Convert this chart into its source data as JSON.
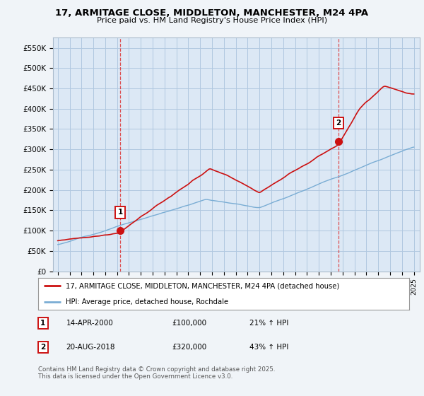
{
  "title1": "17, ARMITAGE CLOSE, MIDDLETON, MANCHESTER, M24 4PA",
  "title2": "Price paid vs. HM Land Registry's House Price Index (HPI)",
  "ylim": [
    0,
    575000
  ],
  "yticks": [
    0,
    50000,
    100000,
    150000,
    200000,
    250000,
    300000,
    350000,
    400000,
    450000,
    500000,
    550000
  ],
  "ytick_labels": [
    "£0",
    "£50K",
    "£100K",
    "£150K",
    "£200K",
    "£250K",
    "£300K",
    "£350K",
    "£400K",
    "£450K",
    "£500K",
    "£550K"
  ],
  "hpi_color": "#7aadd4",
  "price_color": "#cc1111",
  "vline_color": "#dd3333",
  "marker_box_color": "#cc1111",
  "sale1_x": 2000.28,
  "sale1_price": 100000,
  "sale1_label": "14-APR-2000",
  "sale1_hpi_pct": "21% ↑ HPI",
  "sale2_x": 2018.63,
  "sale2_price": 320000,
  "sale2_label": "20-AUG-2018",
  "sale2_hpi_pct": "43% ↑ HPI",
  "legend_label1": "17, ARMITAGE CLOSE, MIDDLETON, MANCHESTER, M24 4PA (detached house)",
  "legend_label2": "HPI: Average price, detached house, Rochdale",
  "copyright": "Contains HM Land Registry data © Crown copyright and database right 2025.\nThis data is licensed under the Open Government Licence v3.0.",
  "bg_color": "#f0f4f8",
  "plot_bg": "#dce8f5",
  "grid_color": "#b0c8e0"
}
